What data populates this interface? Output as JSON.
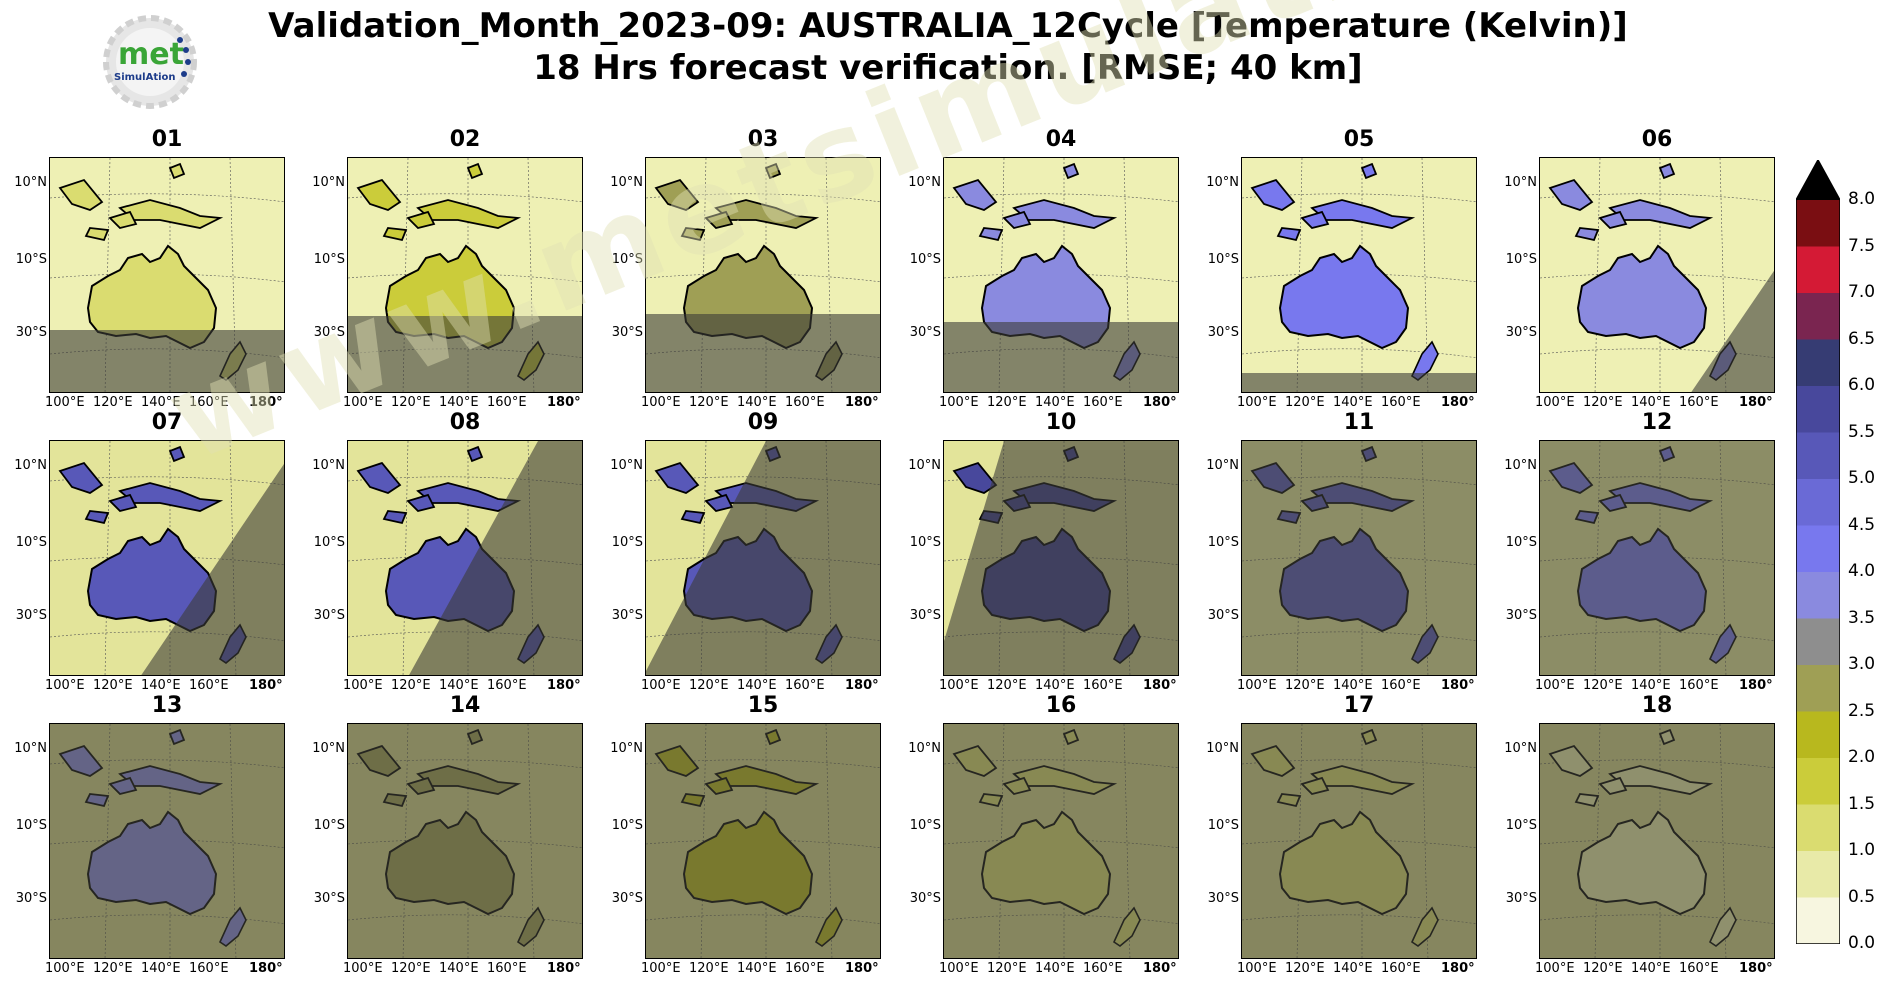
{
  "logo": {
    "name": "met-simulation-logo",
    "text_main": "met",
    "text_sub": "SimulAtion"
  },
  "title": {
    "line1": "Validation_Month_2023-09: AUSTRALIA_12Cycle [Temperature (Kelvin)]",
    "line2": "18 Hrs forecast verification.  [RMSE; 40 km]"
  },
  "watermark": "www.metsimulation.com",
  "panels": [
    "01",
    "02",
    "03",
    "04",
    "05",
    "06",
    "07",
    "08",
    "09",
    "10",
    "11",
    "12",
    "13",
    "14",
    "15",
    "16",
    "17",
    "18"
  ],
  "panel_intensity": [
    0.15,
    0.25,
    0.45,
    0.55,
    0.7,
    0.6,
    0.8,
    0.85,
    0.85,
    0.9,
    0.85,
    0.7,
    0.55,
    0.45,
    0.3,
    0.2,
    0.15,
    0.12
  ],
  "lat_labels": [
    "10°N",
    "10°S",
    "30°S"
  ],
  "lon_labels": [
    "100°E",
    "120°E",
    "140°E",
    "160°E",
    "180°"
  ],
  "colorbar": {
    "ticks": [
      "0.0",
      "0.5",
      "1.0",
      "1.5",
      "2.0",
      "2.5",
      "3.0",
      "3.5",
      "4.0",
      "4.5",
      "5.0",
      "5.5",
      "6.0",
      "6.5",
      "7.0",
      "7.5",
      "8.0"
    ],
    "colors": [
      "#f7f6e0",
      "#e8eaa8",
      "#dadc70",
      "#cbcc3a",
      "#b8b81e",
      "#9f9f55",
      "#8e8e8e",
      "#8a8adf",
      "#7878ee",
      "#6a6ad6",
      "#5858b8",
      "#48489c",
      "#363c73",
      "#7a2550",
      "#d41a35",
      "#7a0e12",
      "#000000"
    ]
  }
}
